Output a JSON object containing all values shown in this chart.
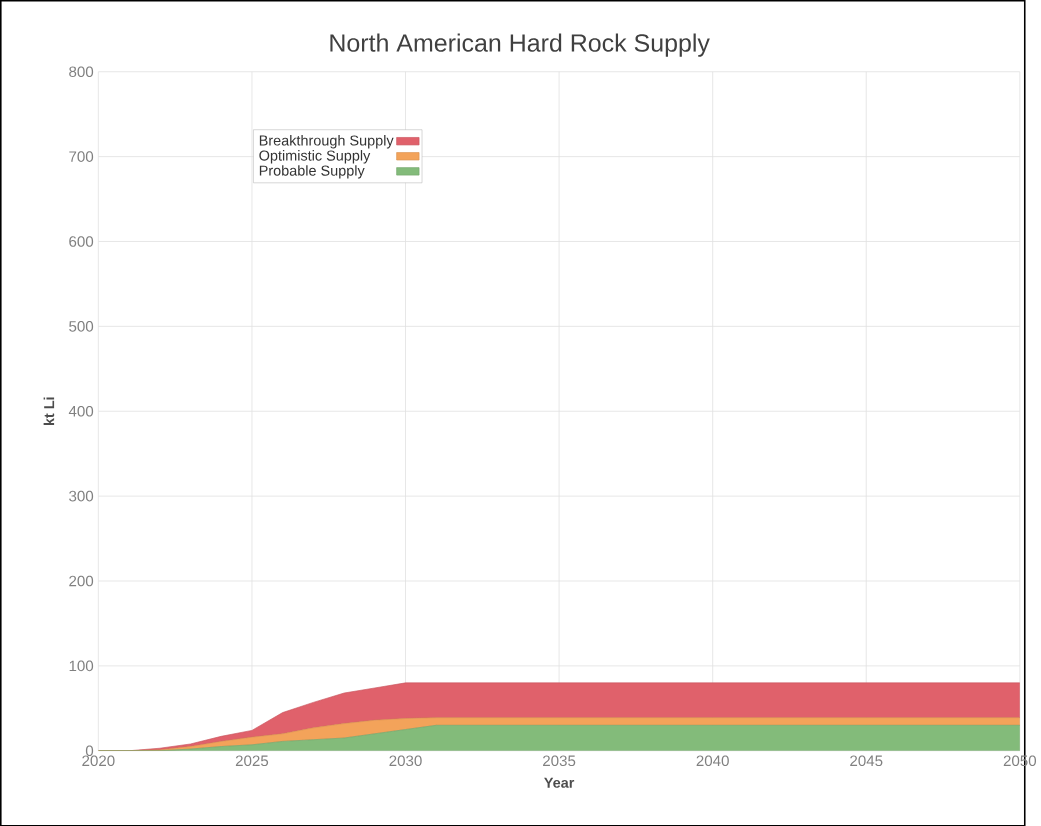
{
  "chart_data": {
    "type": "area",
    "title": "North American Hard Rock Supply",
    "xlabel": "Year",
    "ylabel": "kt Li",
    "stacked": true,
    "grid": true,
    "legend": "top left",
    "x": [
      2020,
      2021,
      2022,
      2023,
      2024,
      2025,
      2026,
      2027,
      2028,
      2029,
      2030,
      2031,
      2032,
      2033,
      2034,
      2035,
      2036,
      2037,
      2038,
      2039,
      2040,
      2041,
      2042,
      2043,
      2044,
      2045,
      2046,
      2047,
      2048,
      2049,
      2050
    ],
    "xlim": [
      2020,
      2050
    ],
    "xticks": [
      2020,
      2025,
      2030,
      2035,
      2040,
      2045,
      2050
    ],
    "ylim": [
      0,
      800
    ],
    "yticks": [
      0,
      100,
      200,
      300,
      400,
      500,
      600,
      700,
      800
    ],
    "series": [
      {
        "name": "Probable Supply",
        "color": "#83bb7a",
        "values": [
          0,
          0,
          0,
          2,
          5,
          7,
          11,
          13,
          15,
          20,
          25,
          30,
          30,
          30,
          30,
          30,
          30,
          30,
          30,
          30,
          30,
          30,
          30,
          30,
          30,
          30,
          30,
          30,
          30,
          30,
          30
        ]
      },
      {
        "name": "Optimistic Supply",
        "color": "#f3a35a",
        "values": [
          0,
          0,
          1,
          3,
          6,
          9,
          9,
          14,
          17,
          16,
          13,
          9,
          9,
          9,
          9,
          9,
          9,
          9,
          9,
          9,
          9,
          9,
          9,
          9,
          9,
          9,
          9,
          9,
          9,
          9,
          9
        ]
      },
      {
        "name": "Breakthrough Supply",
        "color": "#e0616b",
        "values": [
          0,
          0,
          2,
          3,
          6,
          8,
          25,
          30,
          36,
          38,
          42,
          41,
          41,
          41,
          41,
          41,
          41,
          41,
          41,
          41,
          41,
          41,
          41,
          41,
          41,
          41,
          41,
          41,
          41,
          41,
          41
        ]
      }
    ]
  }
}
